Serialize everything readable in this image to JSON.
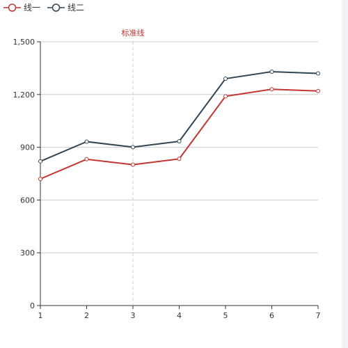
{
  "chart_data": {
    "type": "line",
    "categories": [
      "1",
      "2",
      "3",
      "4",
      "5",
      "6",
      "7"
    ],
    "series": [
      {
        "name": "线一",
        "color": "#c23531",
        "values": [
          720,
          832,
          801,
          834,
          1190,
          1230,
          1220
        ]
      },
      {
        "name": "线二",
        "color": "#2f4554",
        "values": [
          820,
          932,
          901,
          934,
          1290,
          1330,
          1320
        ]
      }
    ],
    "yticks": [
      0,
      300,
      600,
      900,
      1200,
      1500
    ],
    "ytick_labels": [
      "0",
      "300",
      "600",
      "900",
      "1,200",
      "1,500"
    ],
    "ylim": [
      0,
      1500
    ],
    "grid": true,
    "legend_position": "top-left",
    "markline": {
      "label": "标准线",
      "x": "3",
      "color": "#c23531"
    },
    "title": "",
    "xlabel": "",
    "ylabel": ""
  }
}
